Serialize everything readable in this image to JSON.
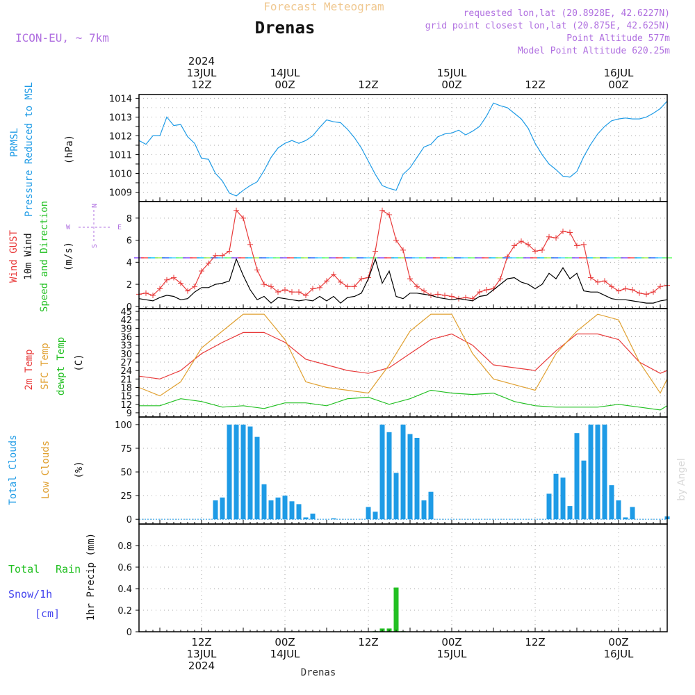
{
  "header": {
    "title_top": "Forecast Meteogram",
    "location": "Drenas",
    "model": "ICON-EU, ~ 7km",
    "requested": "requested lon,lat (20.8928E, 42.6227N)",
    "grid_point": "grid point closest lon,lat (20.875E, 42.625N)",
    "point_altitude": "Point Altitude 577m",
    "model_altitude": "Model Point Altitude 620.25m"
  },
  "time_axis": {
    "top_labels": [
      {
        "x": 12,
        "lines": [
          "2024",
          "13JUL",
          "12Z"
        ]
      },
      {
        "x": 24,
        "lines": [
          "14JUL",
          "00Z"
        ]
      },
      {
        "x": 36,
        "lines": [
          "12Z"
        ]
      },
      {
        "x": 48,
        "lines": [
          "15JUL",
          "00Z"
        ]
      },
      {
        "x": 60,
        "lines": [
          "12Z"
        ]
      },
      {
        "x": 72,
        "lines": [
          "16JUL",
          "00Z"
        ]
      }
    ],
    "bottom_labels": [
      {
        "x": 12,
        "lines": [
          "12Z",
          "13JUL",
          "2024"
        ]
      },
      {
        "x": 24,
        "lines": [
          "00Z",
          "14JUL"
        ]
      },
      {
        "x": 36,
        "lines": [
          "12Z"
        ]
      },
      {
        "x": 48,
        "lines": [
          "00Z",
          "15JUL"
        ]
      },
      {
        "x": 60,
        "lines": [
          "12Z"
        ]
      },
      {
        "x": 72,
        "lines": [
          "00Z",
          "16JUL"
        ]
      }
    ],
    "footer": "Drenas",
    "watermark": "by Angel"
  },
  "panel_labels": {
    "pressure": {
      "l1": "PRMSL",
      "l2": "Pressure Reduced to MSL",
      "unit": "(hPa)"
    },
    "wind": {
      "l1": "Wind GUST",
      "l2": "10m Wind",
      "l3": "Speed and Direction",
      "unit": "(m/s)"
    },
    "compass": {
      "n": "N",
      "s": "S",
      "w": "W",
      "e": "E"
    },
    "temp": {
      "l1": "2m Temp",
      "l2": "SFC Temp",
      "l3": "dewpt Temp",
      "unit": "(C)"
    },
    "clouds": {
      "l1": "Total Clouds",
      "l2": "Low Clouds",
      "unit": "(%)"
    },
    "precip": {
      "l1": "Total",
      "l1b": "Rain",
      "l2": "Snow/1h",
      "l3": "[cm]",
      "unit": "1hr Precip (mm)"
    }
  },
  "colors": {
    "pressure": "#1e9be6",
    "gust": "#e83a3a",
    "wind": "#000000",
    "t2m": "#e83a3a",
    "tsfc": "#e0a030",
    "dewpt": "#22c022",
    "clouds": "#1e9be6",
    "rain": "#22c022",
    "header_purple": "#b070e0",
    "title_orange": "#f0c890"
  },
  "chart_data": [
    {
      "type": "line",
      "name": "pressure",
      "x_range": [
        3,
        79
      ],
      "ylim": [
        1008.5,
        1014.2
      ],
      "yticks": [
        1009,
        1010,
        1011,
        1012,
        1013,
        1014
      ],
      "x": [
        3,
        4,
        5,
        6,
        7,
        8,
        9,
        10,
        11,
        12,
        13,
        14,
        15,
        16,
        17,
        18,
        19,
        20,
        21,
        22,
        23,
        24,
        25,
        26,
        27,
        28,
        29,
        30,
        31,
        32,
        33,
        34,
        35,
        36,
        37,
        38,
        39,
        40,
        41,
        42,
        43,
        44,
        45,
        46,
        47,
        48,
        49,
        50,
        51,
        52,
        53,
        54,
        55,
        56,
        57,
        58,
        59,
        60,
        61,
        62,
        63,
        64,
        65,
        66,
        67,
        68,
        69,
        70,
        71,
        72,
        73,
        74,
        75,
        76,
        77,
        78,
        79
      ],
      "values": [
        1011.75,
        1011.55,
        1012.0,
        1012.0,
        1013.0,
        1012.55,
        1012.6,
        1011.95,
        1011.6,
        1010.8,
        1010.75,
        1010.0,
        1009.6,
        1008.95,
        1008.8,
        1009.1,
        1009.35,
        1009.55,
        1010.15,
        1010.85,
        1011.35,
        1011.6,
        1011.75,
        1011.6,
        1011.75,
        1012.0,
        1012.45,
        1012.85,
        1012.75,
        1012.7,
        1012.35,
        1011.9,
        1011.35,
        1010.65,
        1009.95,
        1009.35,
        1009.2,
        1009.1,
        1009.95,
        1010.3,
        1010.85,
        1011.4,
        1011.55,
        1011.95,
        1012.1,
        1012.15,
        1012.3,
        1012.05,
        1012.25,
        1012.5,
        1013.05,
        1013.75,
        1013.6,
        1013.5,
        1013.2,
        1012.9,
        1012.4,
        1011.6,
        1011.0,
        1010.5,
        1010.2,
        1009.85,
        1009.8,
        1010.1,
        1010.9,
        1011.55,
        1012.1,
        1012.5,
        1012.8,
        1012.9,
        1012.95,
        1012.9,
        1012.9,
        1013.0,
        1013.2,
        1013.45,
        1013.85
      ]
    },
    {
      "type": "line",
      "name": "wind",
      "x_range": [
        3,
        79
      ],
      "ylim": [
        -0.2,
        9.5
      ],
      "yticks": [
        0,
        2,
        4,
        6,
        8
      ],
      "series": [
        {
          "name": "Wind GUST",
          "x": [
            3,
            4,
            5,
            6,
            7,
            8,
            9,
            10,
            11,
            12,
            13,
            14,
            15,
            16,
            17,
            18,
            19,
            20,
            21,
            22,
            23,
            24,
            25,
            26,
            27,
            28,
            29,
            30,
            31,
            32,
            33,
            34,
            35,
            36,
            37,
            38,
            39,
            40,
            41,
            42,
            43,
            44,
            45,
            46,
            47,
            48,
            49,
            50,
            51,
            52,
            53,
            54,
            55,
            56,
            57,
            58,
            59,
            60,
            61,
            62,
            63,
            64,
            65,
            66,
            67,
            68,
            69,
            70,
            71,
            72,
            73,
            74,
            75,
            76,
            77,
            78,
            79
          ],
          "values": [
            1.1,
            1.2,
            1.0,
            1.6,
            2.4,
            2.6,
            2.1,
            1.4,
            1.8,
            3.2,
            3.9,
            4.6,
            4.6,
            5.0,
            8.7,
            8.0,
            5.6,
            3.3,
            2.0,
            1.8,
            1.3,
            1.5,
            1.3,
            1.3,
            1.0,
            1.6,
            1.7,
            2.3,
            2.9,
            2.2,
            1.8,
            1.8,
            2.5,
            2.6,
            5.0,
            8.7,
            8.3,
            6.0,
            5.1,
            2.5,
            1.8,
            1.4,
            1.0,
            1.1,
            1.0,
            0.9,
            0.7,
            0.8,
            0.7,
            1.3,
            1.5,
            1.6,
            2.5,
            4.5,
            5.5,
            5.9,
            5.6,
            5.0,
            5.1,
            6.3,
            6.2,
            6.8,
            6.7,
            5.5,
            5.6,
            2.6,
            2.2,
            2.3,
            1.8,
            1.4,
            1.6,
            1.5,
            1.2,
            1.1,
            1.3,
            1.8,
            1.9
          ]
        },
        {
          "name": "10m Wind",
          "x": [
            3,
            4,
            5,
            6,
            7,
            8,
            9,
            10,
            11,
            12,
            13,
            14,
            15,
            16,
            17,
            18,
            19,
            20,
            21,
            22,
            23,
            24,
            25,
            26,
            27,
            28,
            29,
            30,
            31,
            32,
            33,
            34,
            35,
            36,
            37,
            38,
            39,
            40,
            41,
            42,
            43,
            44,
            45,
            46,
            47,
            48,
            49,
            50,
            51,
            52,
            53,
            54,
            55,
            56,
            57,
            58,
            59,
            60,
            61,
            62,
            63,
            64,
            65,
            66,
            67,
            68,
            69,
            70,
            71,
            72,
            73,
            74,
            75,
            76,
            77,
            78,
            79
          ],
          "values": [
            0.7,
            0.6,
            0.5,
            0.8,
            1.0,
            0.9,
            0.6,
            0.7,
            1.3,
            1.7,
            1.7,
            2.0,
            2.1,
            2.3,
            4.3,
            2.8,
            1.5,
            0.6,
            0.9,
            0.3,
            0.8,
            0.7,
            0.6,
            0.5,
            0.6,
            0.5,
            0.9,
            0.5,
            0.9,
            0.3,
            0.8,
            0.9,
            1.2,
            2.5,
            4.3,
            2.1,
            3.2,
            0.9,
            0.7,
            1.2,
            1.2,
            1.1,
            1.0,
            0.8,
            0.7,
            0.6,
            0.7,
            0.6,
            0.5,
            0.9,
            1.0,
            1.5,
            2.0,
            2.5,
            2.6,
            2.2,
            2.0,
            1.6,
            2.0,
            3.0,
            2.5,
            3.5,
            2.5,
            3.0,
            1.4,
            1.3,
            1.3,
            1.0,
            0.7,
            0.6,
            0.6,
            0.5,
            0.4,
            0.3,
            0.3,
            0.5,
            0.6
          ]
        }
      ]
    },
    {
      "type": "line",
      "name": "temperature",
      "x_range": [
        3,
        79
      ],
      "ylim": [
        7.5,
        46
      ],
      "yticks": [
        9,
        12,
        15,
        18,
        21,
        24,
        27,
        30,
        33,
        36,
        39,
        42,
        45
      ],
      "series": [
        {
          "name": "2m Temp",
          "x": [
            3,
            6,
            9,
            12,
            15,
            18,
            21,
            24,
            27,
            30,
            33,
            36,
            39,
            42,
            45,
            48,
            51,
            54,
            57,
            60,
            63,
            66,
            69,
            72,
            75,
            78,
            79
          ],
          "values": [
            22,
            21,
            24,
            30,
            34,
            37.5,
            37.5,
            34,
            28,
            26,
            24,
            23,
            25,
            30,
            35,
            37,
            33,
            26,
            25,
            24,
            31,
            37,
            37,
            35,
            27,
            23,
            24
          ]
        },
        {
          "name": "SFC Temp",
          "x": [
            3,
            6,
            9,
            12,
            15,
            18,
            21,
            24,
            27,
            30,
            33,
            36,
            39,
            42,
            45,
            48,
            51,
            54,
            57,
            60,
            63,
            66,
            69,
            72,
            75,
            78,
            79
          ],
          "values": [
            18,
            15,
            20,
            32,
            38,
            44,
            44,
            35,
            20,
            18,
            17,
            16,
            26,
            38,
            44,
            44,
            30,
            21,
            19,
            17,
            30,
            38,
            44,
            42,
            27,
            16,
            21
          ]
        },
        {
          "name": "dewpt Temp",
          "x": [
            3,
            6,
            9,
            12,
            15,
            18,
            21,
            24,
            27,
            30,
            33,
            36,
            39,
            42,
            45,
            48,
            51,
            54,
            57,
            60,
            63,
            66,
            69,
            72,
            75,
            78,
            79
          ],
          "values": [
            11.5,
            11.5,
            14,
            13,
            11,
            11.5,
            10.5,
            12.5,
            12.5,
            11.5,
            14,
            14.5,
            12,
            14,
            17,
            16,
            15.5,
            16,
            13,
            11.5,
            11,
            11,
            11,
            12,
            11,
            10,
            11.5
          ]
        }
      ]
    },
    {
      "type": "bar",
      "name": "clouds",
      "x_range": [
        3,
        79
      ],
      "ylim": [
        -5,
        108
      ],
      "yticks": [
        0,
        25,
        50,
        75,
        100
      ],
      "series": [
        {
          "name": "Total Clouds",
          "x": [
            14,
            15,
            16,
            17,
            18,
            19,
            20,
            21,
            22,
            23,
            24,
            25,
            26,
            27,
            28,
            31,
            36,
            37,
            38,
            39,
            40,
            41,
            42,
            43,
            44,
            45,
            62,
            63,
            64,
            65,
            66,
            67,
            68,
            69,
            70,
            71,
            72,
            73,
            74,
            79
          ],
          "values": [
            20,
            23,
            100,
            100,
            100,
            98,
            87,
            37,
            20,
            23,
            25,
            19,
            16,
            2,
            6,
            1,
            13,
            8,
            100,
            92,
            49,
            100,
            90,
            86,
            20,
            29,
            27,
            48,
            44,
            14,
            91,
            62,
            100,
            100,
            100,
            36,
            20,
            2,
            13,
            3
          ]
        }
      ]
    },
    {
      "type": "bar",
      "name": "precipitation",
      "x_range": [
        3,
        79
      ],
      "ylim": [
        0,
        1.0
      ],
      "yticks": [
        0,
        0.2,
        0.4,
        0.6,
        0.8
      ],
      "series": [
        {
          "name": "Total Rain",
          "x": [
            37,
            38,
            39,
            40,
            41
          ],
          "values": [
            0.005,
            0.03,
            0.03,
            0.41,
            0.005
          ]
        }
      ]
    }
  ]
}
